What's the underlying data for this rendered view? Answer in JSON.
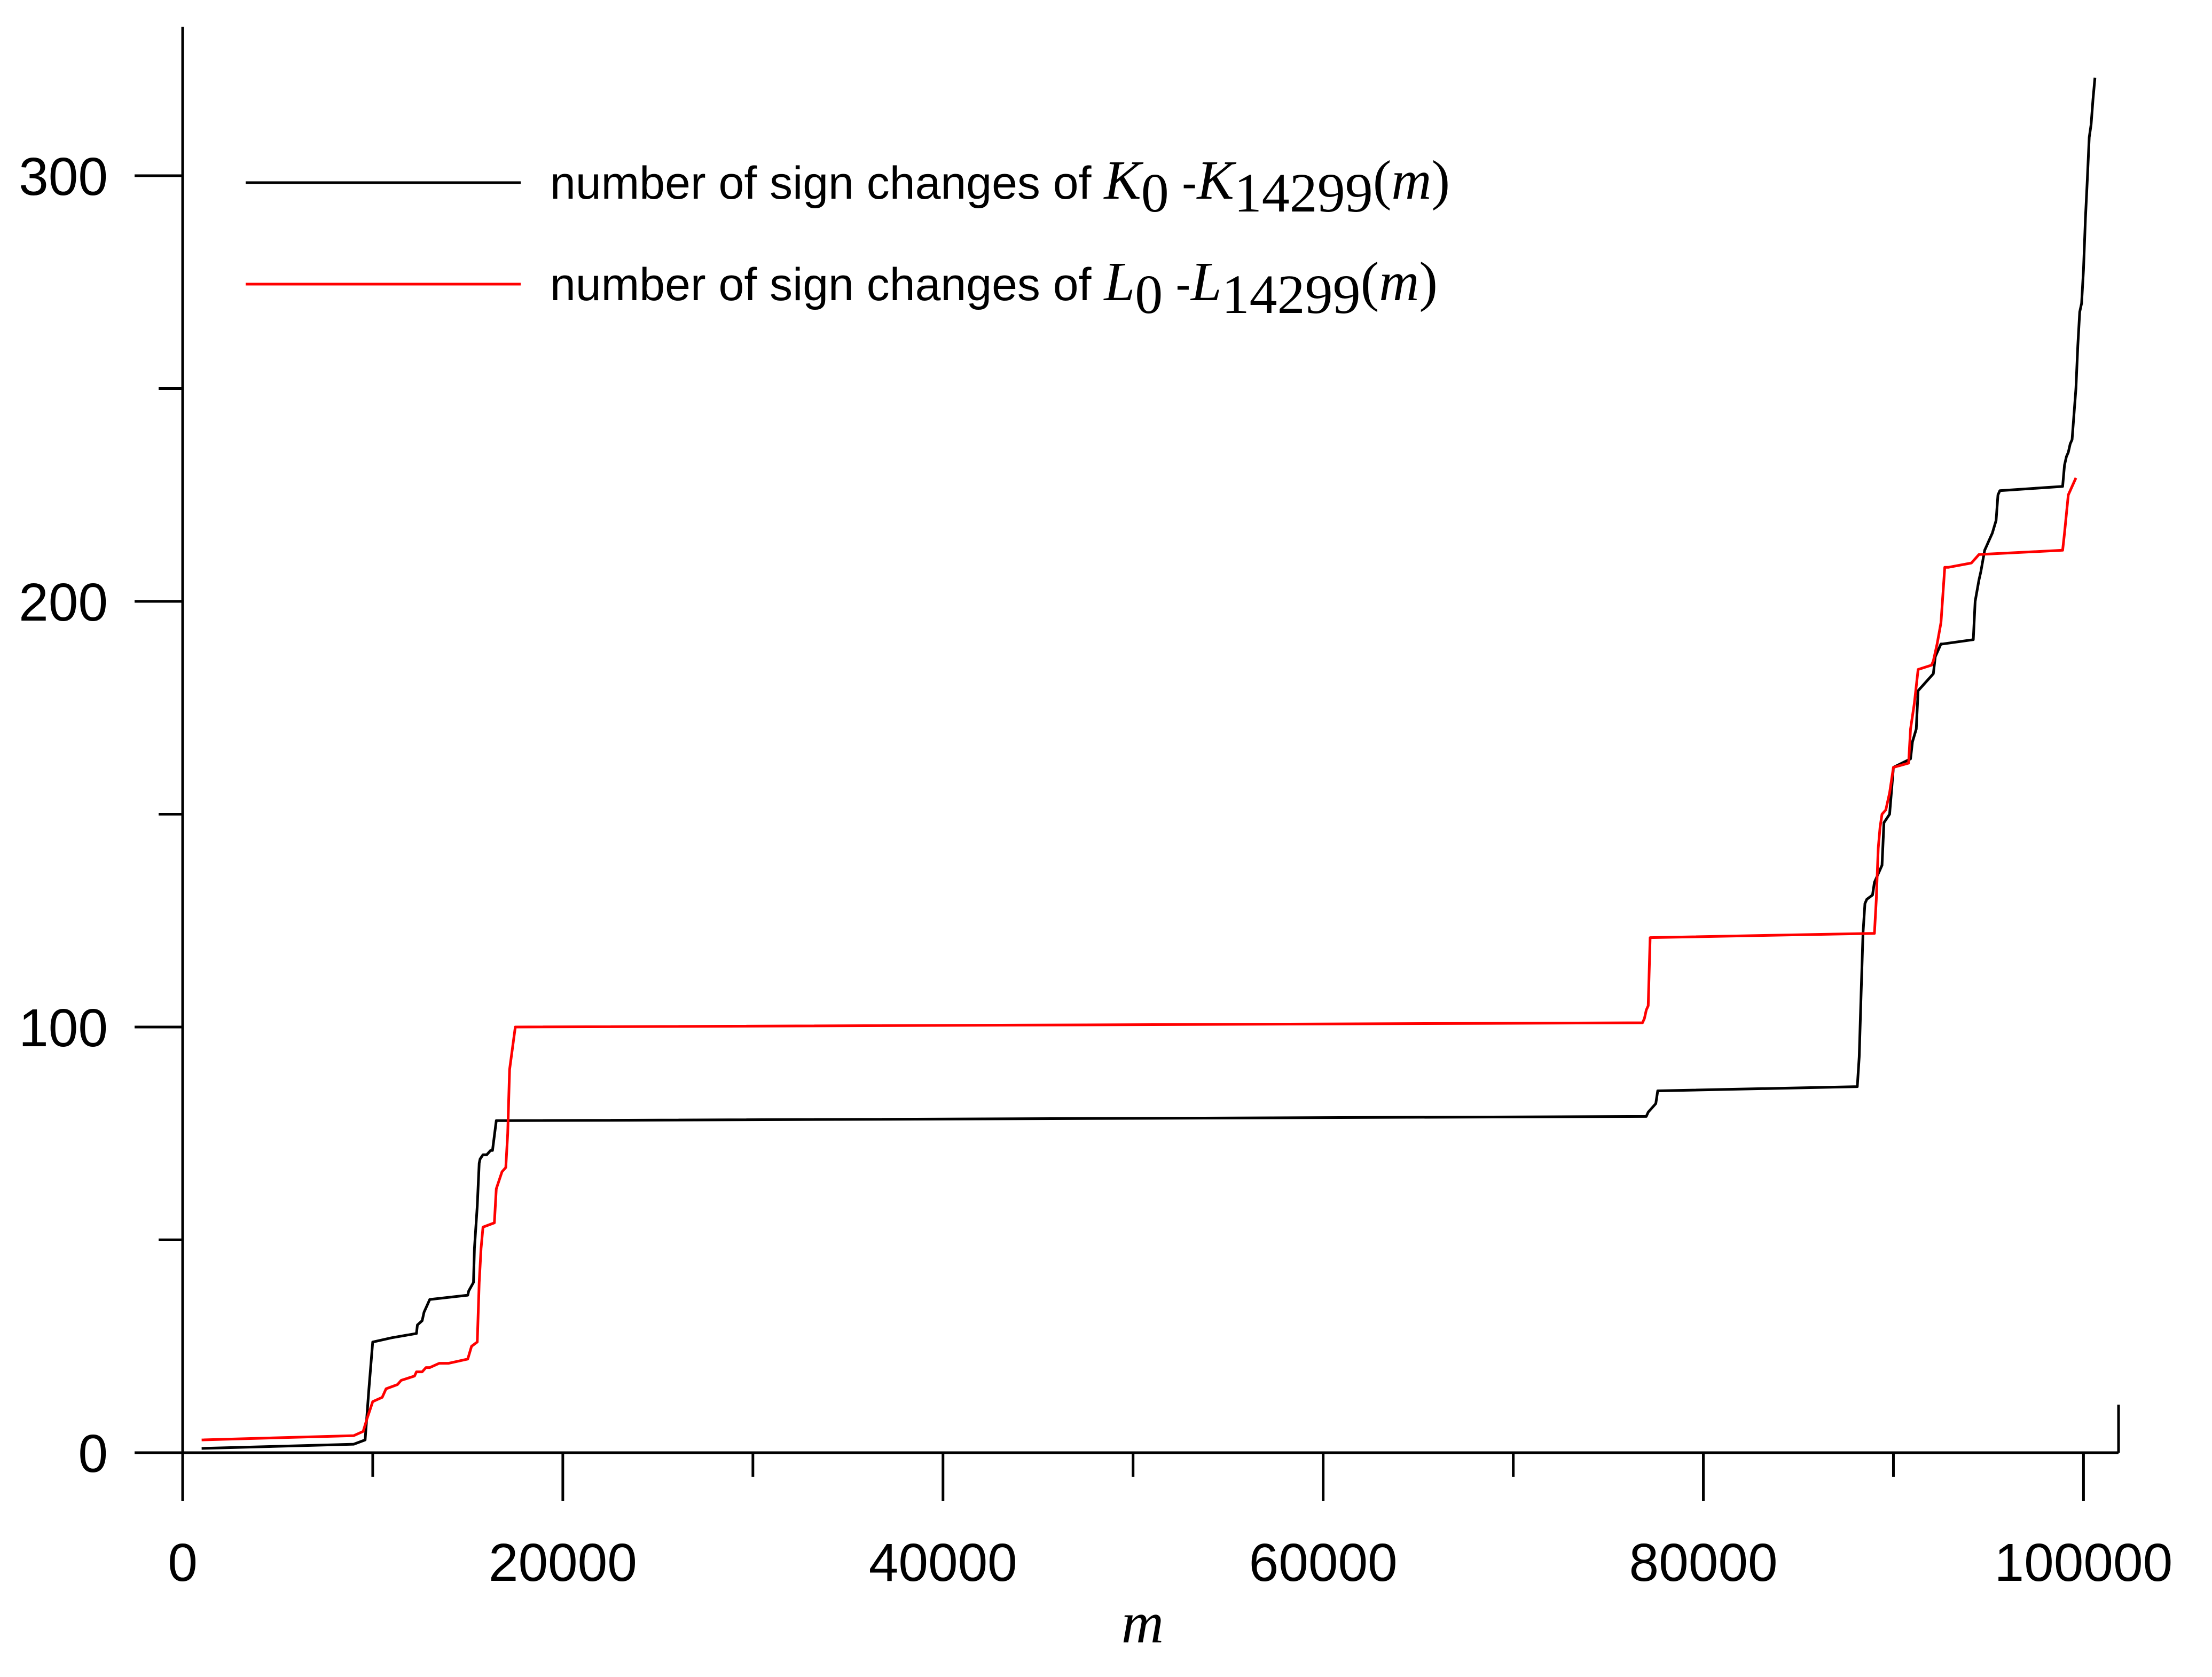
{
  "chart_data": {
    "type": "line",
    "title": "",
    "xlabel": "m",
    "ylabel": "",
    "xlim": [
      0,
      101000
    ],
    "ylim": [
      0,
      335
    ],
    "x_ticks": [
      0,
      20000,
      40000,
      60000,
      80000,
      100000
    ],
    "x_tick_labels": [
      "0",
      "20000",
      "40000",
      "60000",
      "80000",
      "100000"
    ],
    "x_minor_ticks": [
      10000,
      30000,
      50000,
      70000,
      90000
    ],
    "y_ticks": [
      0,
      100,
      200,
      300
    ],
    "y_tick_labels": [
      "0",
      "100",
      "200",
      "300"
    ],
    "y_minor_ticks": [
      50,
      150,
      250
    ],
    "grid": false,
    "legend_position": "top-left",
    "colors": {
      "series_k": "#000000",
      "series_l": "#ff0000"
    },
    "series": [
      {
        "name_text": "number of  sign changes of ",
        "name_math": {
          "a": "K",
          "a_sub": "0",
          "sep": " -",
          "b": "K",
          "b_sub": "14299",
          "arg": "(m)"
        },
        "color": "#000000",
        "x": [
          1000,
          9000,
          9600,
          9800,
          10000,
          11000,
          12300,
          12350,
          12600,
          12700,
          12900,
          13000,
          15000,
          15050,
          15300,
          15350,
          15500,
          15600,
          15650,
          15800,
          16000,
          16200,
          16300,
          16500,
          17000,
          77000,
          77100,
          77500,
          77600,
          88100,
          88200,
          88300,
          88400,
          88500,
          88600,
          88900,
          89000,
          89400,
          89500,
          89800,
          90000,
          90900,
          91000,
          91200,
          91300,
          92100,
          92200,
          92500,
          92600,
          94200,
          94300,
          94500,
          94600,
          94800,
          94900,
          95000,
          95200,
          95400,
          95500,
          95600,
          98900,
          99000,
          99100,
          99200,
          99300,
          99400,
          99600,
          99700,
          99800,
          99900,
          100000,
          100100,
          100200,
          100300,
          100400,
          100500,
          100600
        ],
        "y": [
          1,
          2,
          3,
          15,
          26,
          27,
          28,
          30,
          31,
          33,
          35,
          36,
          37,
          38,
          40,
          48,
          58,
          68,
          69,
          70,
          70,
          71,
          71,
          78,
          78,
          79,
          80,
          82,
          85,
          86,
          93,
          108,
          122,
          129,
          130,
          131,
          134,
          138,
          148,
          150,
          161,
          163,
          167,
          170,
          179,
          183,
          187,
          190,
          190,
          191,
          200,
          205,
          207,
          212,
          213,
          214,
          216,
          219,
          225,
          226,
          227,
          232,
          234,
          235,
          237,
          238,
          250,
          260,
          268,
          270,
          278,
          290,
          299,
          309,
          312,
          318,
          323
        ]
      },
      {
        "name_text": "number of  sign changes of ",
        "name_math": {
          "a": "L",
          "a_sub": "0",
          "sep": " -",
          "b": "L",
          "b_sub": "14299",
          "arg": "(m)"
        },
        "color": "#ff0000",
        "x": [
          1000,
          9000,
          9500,
          9700,
          10000,
          10500,
          10700,
          11300,
          11500,
          12200,
          12300,
          12600,
          12800,
          13000,
          13500,
          14000,
          15000,
          15200,
          15500,
          15600,
          15700,
          15800,
          16400,
          16500,
          16800,
          17000,
          17100,
          17200,
          17500,
          76800,
          76900,
          77000,
          77100,
          77200,
          89000,
          89100,
          89200,
          89300,
          89400,
          89600,
          89800,
          90000,
          90800,
          90900,
          91100,
          91300,
          92000,
          92100,
          92300,
          92500,
          92700,
          92900,
          94100,
          94300,
          94500,
          98900,
          99000,
          99200,
          99400,
          99600
        ],
        "y": [
          3,
          4,
          5,
          8,
          12,
          13,
          15,
          16,
          17,
          18,
          19,
          19,
          20,
          20,
          21,
          21,
          22,
          25,
          26,
          40,
          48,
          53,
          54,
          62,
          66,
          67,
          75,
          90,
          100,
          101,
          102,
          104,
          105,
          121,
          122,
          130,
          142,
          147,
          150,
          151,
          155,
          161,
          162,
          170,
          176,
          184,
          185,
          186,
          190,
          195,
          208,
          208,
          209,
          210,
          211,
          212,
          216,
          225,
          227,
          229
        ]
      }
    ]
  }
}
